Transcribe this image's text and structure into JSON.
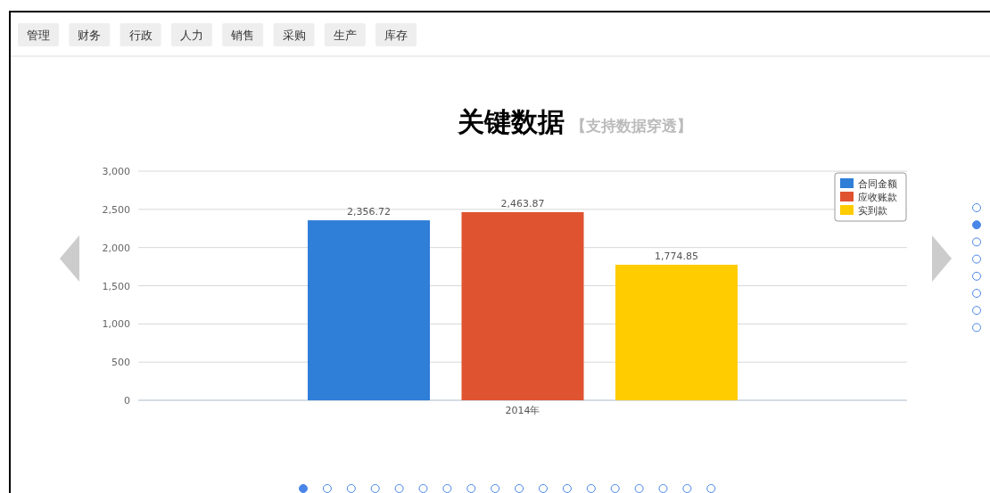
{
  "chart_data": {
    "type": "bar",
    "title": "关键数据",
    "subtitle": "【支持数据穿透】",
    "categories": [
      "2014年"
    ],
    "series": [
      {
        "name": "合同金额",
        "color": "#2f7ed8",
        "values": [
          2356.72
        ]
      },
      {
        "name": "应收账款",
        "color": "#e05331",
        "values": [
          2463.87
        ]
      },
      {
        "name": "实到款",
        "color": "#ffcc00",
        "values": [
          1774.85
        ]
      }
    ],
    "ylim": [
      0,
      3000
    ],
    "yticks": [
      {
        "value": 0,
        "label": "0"
      },
      {
        "value": 500,
        "label": "500"
      },
      {
        "value": 1000,
        "label": "1,000"
      },
      {
        "value": 1500,
        "label": "1,500"
      },
      {
        "value": 2000,
        "label": "2,000"
      },
      {
        "value": 2500,
        "label": "2,500"
      },
      {
        "value": 3000,
        "label": "3,000"
      }
    ],
    "value_labels": [
      "2,356.72",
      "2,463.87",
      "1,774.85"
    ],
    "grid": "y",
    "legend": "top right",
    "annotations": [
      "管理",
      "财务",
      "行政",
      "人力",
      "销售",
      "采购",
      "生产",
      "库存"
    ]
  }
}
